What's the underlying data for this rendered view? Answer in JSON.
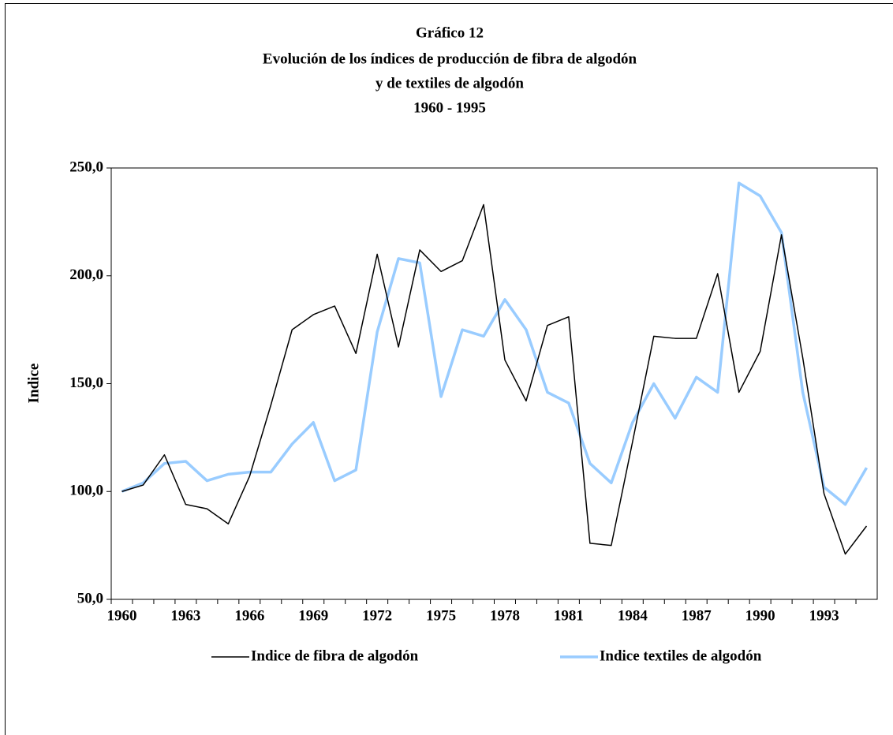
{
  "chart_data": {
    "type": "line",
    "title": "Gráfico 12",
    "subtitle": [
      "Evolución de los índices de producción de fibra de algodón",
      "y de textiles de algodón",
      "1960 - 1995"
    ],
    "y_label": "Indice",
    "categories": [
      "1960",
      null,
      null,
      "1963",
      null,
      null,
      "1966",
      null,
      null,
      "1969",
      null,
      null,
      "1972",
      null,
      null,
      "1975",
      null,
      null,
      "1978",
      null,
      null,
      "1981",
      null,
      null,
      "1984",
      null,
      null,
      "1987",
      null,
      null,
      "1990",
      null,
      null,
      "1993",
      null,
      null
    ],
    "series": [
      {
        "name": "Indice de fibra de algodón",
        "color": "#000000",
        "values": [
          100,
          103,
          117,
          94,
          92,
          85,
          107,
          140,
          175,
          182,
          186,
          164,
          210,
          167,
          212,
          202,
          207,
          233,
          161,
          142,
          177,
          181,
          76,
          75,
          123,
          172,
          171,
          171,
          201,
          146,
          165,
          219,
          162,
          99,
          71,
          84
        ]
      },
      {
        "name": "Indice textiles de algodón",
        "color": "#99ccff",
        "values": [
          100,
          104,
          113,
          114,
          105,
          108,
          109,
          109,
          122,
          132,
          105,
          110,
          174,
          208,
          206,
          144,
          175,
          172,
          189,
          175,
          146,
          141,
          113,
          104,
          132,
          150,
          134,
          153,
          146,
          243,
          237,
          220,
          146,
          102,
          94,
          111
        ]
      }
    ],
    "ylim": [
      50,
      250
    ],
    "yticks": [
      {
        "value": 50,
        "label": "50,0"
      },
      {
        "value": 100,
        "label": "100,0"
      },
      {
        "value": 150,
        "label": "150,0"
      },
      {
        "value": 200,
        "label": "200,0"
      },
      {
        "value": 250,
        "label": "250,0"
      }
    ],
    "legend": "bottom"
  }
}
